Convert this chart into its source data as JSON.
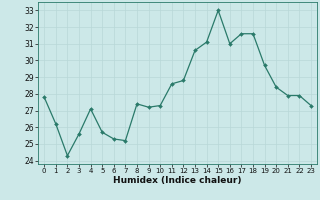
{
  "x": [
    0,
    1,
    2,
    3,
    4,
    5,
    6,
    7,
    8,
    9,
    10,
    11,
    12,
    13,
    14,
    15,
    16,
    17,
    18,
    19,
    20,
    21,
    22,
    23
  ],
  "y": [
    27.8,
    26.2,
    24.3,
    25.6,
    27.1,
    25.7,
    25.3,
    25.2,
    27.4,
    27.2,
    27.3,
    28.6,
    28.8,
    30.6,
    31.1,
    33.0,
    31.0,
    31.6,
    31.6,
    29.7,
    28.4,
    27.9,
    27.9,
    27.3
  ],
  "bg_color": "#cce8e8",
  "grid_color_major": "#b8d8d8",
  "grid_color_minor": "#d4e8e8",
  "line_color": "#2a7a6a",
  "marker_color": "#2a7a6a",
  "xlabel": "Humidex (Indice chaleur)",
  "ylim": [
    23.8,
    33.5
  ],
  "xlim": [
    -0.5,
    23.5
  ],
  "yticks": [
    24,
    25,
    26,
    27,
    28,
    29,
    30,
    31,
    32,
    33
  ],
  "xticks": [
    0,
    1,
    2,
    3,
    4,
    5,
    6,
    7,
    8,
    9,
    10,
    11,
    12,
    13,
    14,
    15,
    16,
    17,
    18,
    19,
    20,
    21,
    22,
    23
  ],
  "spine_color": "#2a7a6a"
}
